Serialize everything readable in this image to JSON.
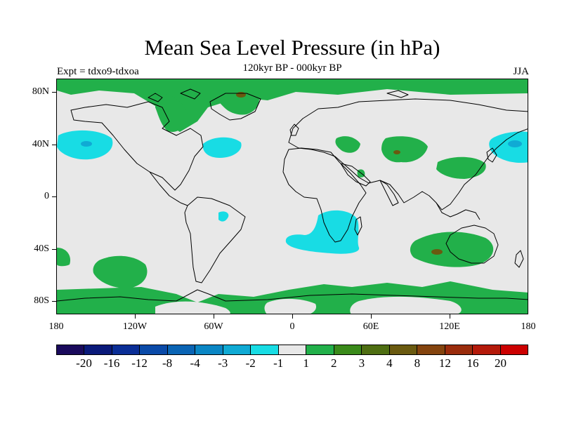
{
  "title": "Mean Sea Level Pressure (in hPa)",
  "subtitle": "120kyr BP - 000kyr BP",
  "experiment": "Expt = tdxo9-tdxoa",
  "season": "JJA",
  "map": {
    "lon_range": [
      -180,
      180
    ],
    "lat_range": [
      -90,
      90
    ],
    "background_color": "#e8e8e8",
    "lat_labels": [
      "80N",
      "40N",
      "0",
      "40S",
      "80S"
    ],
    "lat_values": [
      80,
      40,
      0,
      -40,
      -80
    ],
    "lon_labels": [
      "180",
      "120W",
      "60W",
      "0",
      "60E",
      "120E",
      "180"
    ],
    "lon_values": [
      -180,
      -120,
      -60,
      0,
      60,
      120,
      180
    ]
  },
  "colorbar": {
    "colors": [
      "#1a0a5c",
      "#0a1a7a",
      "#0a2e96",
      "#0a4aa8",
      "#0a64b4",
      "#0a86c4",
      "#10aad4",
      "#18dce4",
      "#e8e8e8",
      "#22b04a",
      "#3a8a1a",
      "#4e6e12",
      "#6a5a10",
      "#84440e",
      "#9a2c0c",
      "#b41a0a",
      "#cc0000"
    ],
    "labels": [
      "-20",
      "-16",
      "-12",
      "-8",
      "-4",
      "-3",
      "-2",
      "-1",
      "1",
      "2",
      "3",
      "4",
      "8",
      "12",
      "16",
      "20"
    ]
  },
  "colors": {
    "positive_1": "#22b04a",
    "positive_2": "#3a8a1a",
    "positive_4": "#6a5a10",
    "negative_1": "#18dce4",
    "negative_2": "#10aad4"
  }
}
